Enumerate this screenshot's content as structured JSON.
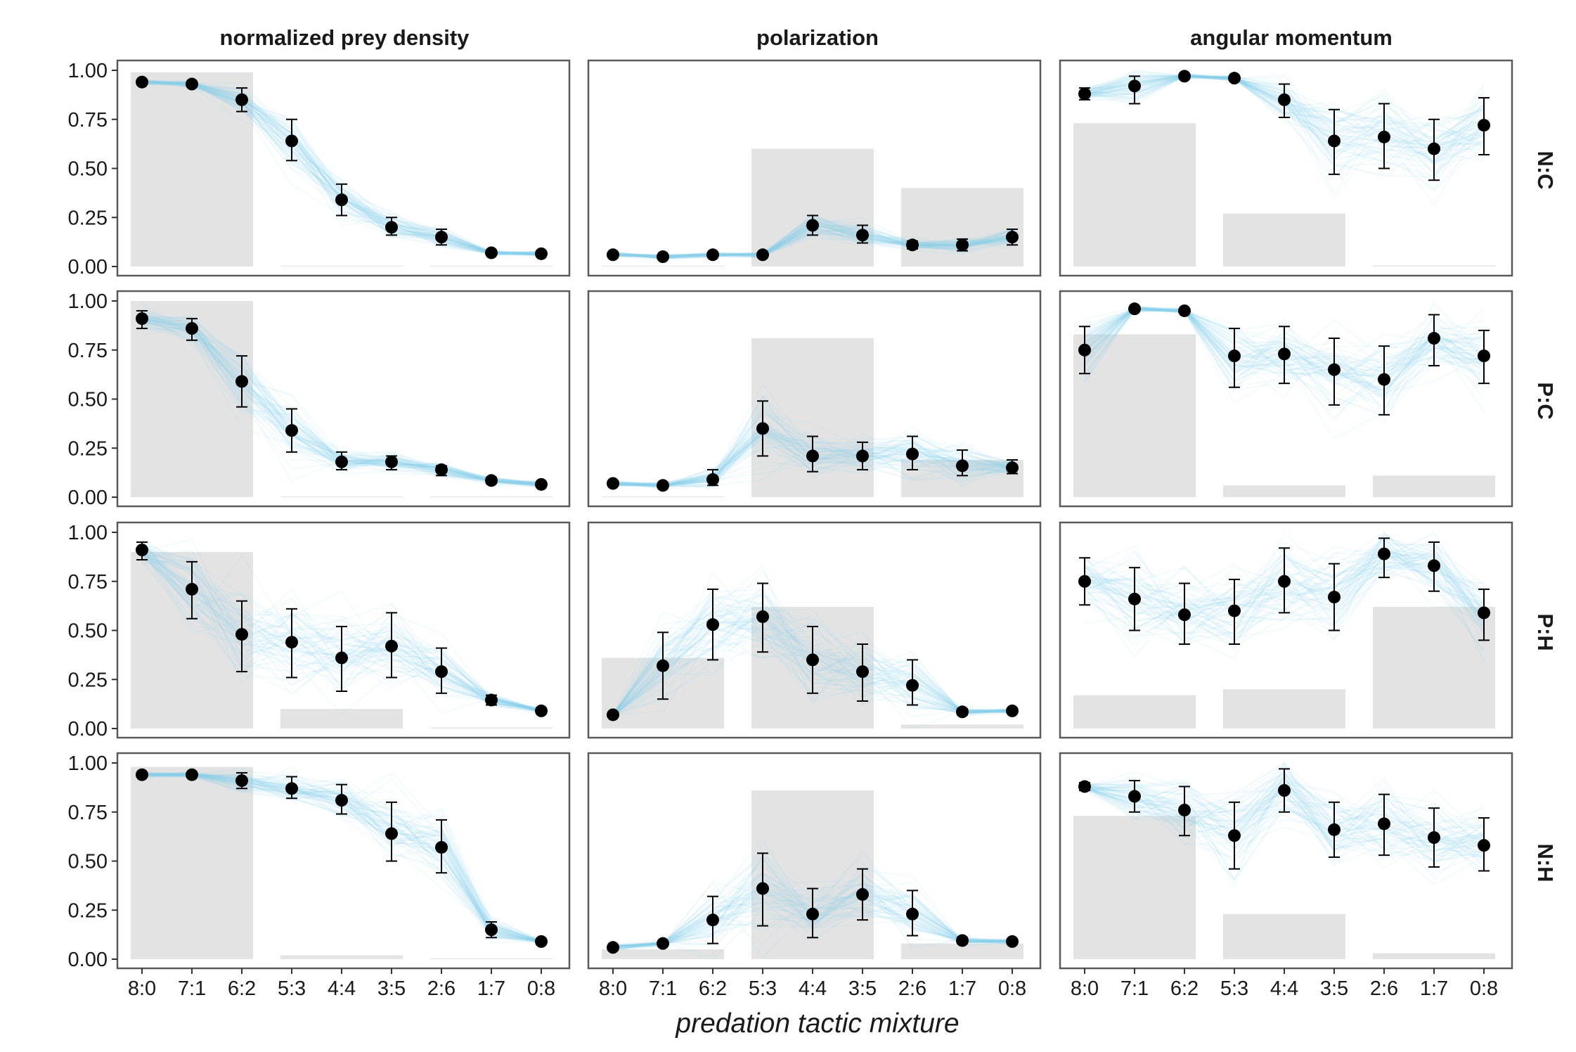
{
  "chart_data": {
    "type": "line",
    "x_title": "predation tactic mixture",
    "x_categories": [
      "8:0",
      "7:1",
      "6:2",
      "5:3",
      "4:4",
      "3:5",
      "2:6",
      "1:7",
      "0:8"
    ],
    "columns": [
      "normalized prey density",
      "polarization",
      "angular momentum"
    ],
    "rows": [
      "N:C",
      "P:C",
      "P:H",
      "N:H"
    ],
    "ylim": [
      0,
      1
    ],
    "y_ticks": [
      "0.00",
      "0.25",
      "0.50",
      "0.75",
      "1.00"
    ],
    "colors": {
      "simulation_lines": "#87ceeb",
      "mean_points": "#000000",
      "background_bars": "#e3e3e3",
      "panel_border": "#5a5a5a"
    },
    "panels": [
      {
        "row": "N:C",
        "column": "normalized prey density",
        "bars": [
          0.99,
          0.0,
          0.0
        ],
        "mean": [
          0.94,
          0.93,
          0.85,
          0.64,
          0.34,
          0.2,
          0.15,
          0.07,
          0.065
        ],
        "lower": [
          0.93,
          0.92,
          0.79,
          0.54,
          0.26,
          0.16,
          0.11,
          0.06,
          0.055
        ],
        "upper": [
          0.95,
          0.94,
          0.91,
          0.75,
          0.42,
          0.25,
          0.19,
          0.08,
          0.075
        ]
      },
      {
        "row": "N:C",
        "column": "polarization",
        "bars": [
          0.0,
          0.6,
          0.4
        ],
        "mean": [
          0.06,
          0.05,
          0.06,
          0.06,
          0.21,
          0.16,
          0.11,
          0.11,
          0.15
        ],
        "lower": [
          0.05,
          0.04,
          0.05,
          0.05,
          0.16,
          0.12,
          0.09,
          0.08,
          0.11
        ],
        "upper": [
          0.07,
          0.06,
          0.07,
          0.07,
          0.26,
          0.21,
          0.13,
          0.14,
          0.19
        ]
      },
      {
        "row": "N:C",
        "column": "angular momentum",
        "bars": [
          0.73,
          0.27,
          0.005
        ],
        "mean": [
          0.88,
          0.92,
          0.97,
          0.96,
          0.85,
          0.64,
          0.66,
          0.6,
          0.72
        ],
        "lower": [
          0.85,
          0.83,
          0.96,
          0.95,
          0.76,
          0.47,
          0.5,
          0.44,
          0.57
        ],
        "upper": [
          0.91,
          0.97,
          0.98,
          0.97,
          0.93,
          0.8,
          0.83,
          0.75,
          0.86
        ]
      },
      {
        "row": "P:C",
        "column": "normalized prey density",
        "bars": [
          1.0,
          0.0,
          0.0
        ],
        "mean": [
          0.91,
          0.86,
          0.59,
          0.34,
          0.18,
          0.18,
          0.14,
          0.085,
          0.065
        ],
        "lower": [
          0.86,
          0.8,
          0.46,
          0.23,
          0.14,
          0.14,
          0.11,
          0.07,
          0.055
        ],
        "upper": [
          0.95,
          0.91,
          0.72,
          0.45,
          0.23,
          0.21,
          0.16,
          0.1,
          0.075
        ]
      },
      {
        "row": "P:C",
        "column": "polarization",
        "bars": [
          0.0,
          0.81,
          0.19
        ],
        "mean": [
          0.07,
          0.06,
          0.09,
          0.35,
          0.21,
          0.21,
          0.22,
          0.16,
          0.15
        ],
        "lower": [
          0.06,
          0.05,
          0.06,
          0.21,
          0.13,
          0.14,
          0.14,
          0.11,
          0.12
        ],
        "upper": [
          0.08,
          0.07,
          0.14,
          0.49,
          0.31,
          0.28,
          0.31,
          0.24,
          0.19
        ]
      },
      {
        "row": "P:C",
        "column": "angular momentum",
        "bars": [
          0.83,
          0.06,
          0.11
        ],
        "mean": [
          0.75,
          0.96,
          0.95,
          0.72,
          0.73,
          0.65,
          0.6,
          0.81,
          0.72
        ],
        "lower": [
          0.63,
          0.95,
          0.94,
          0.56,
          0.58,
          0.47,
          0.42,
          0.67,
          0.58
        ],
        "upper": [
          0.87,
          0.97,
          0.96,
          0.86,
          0.87,
          0.81,
          0.77,
          0.93,
          0.85
        ]
      },
      {
        "row": "P:H",
        "column": "normalized prey density",
        "bars": [
          0.9,
          0.1,
          0.005
        ],
        "mean": [
          0.91,
          0.71,
          0.48,
          0.44,
          0.36,
          0.42,
          0.29,
          0.145,
          0.09
        ],
        "lower": [
          0.86,
          0.56,
          0.29,
          0.26,
          0.19,
          0.26,
          0.18,
          0.12,
          0.08
        ],
        "upper": [
          0.95,
          0.85,
          0.65,
          0.61,
          0.52,
          0.59,
          0.41,
          0.17,
          0.1
        ]
      },
      {
        "row": "P:H",
        "column": "polarization",
        "bars": [
          0.36,
          0.62,
          0.02
        ],
        "mean": [
          0.07,
          0.32,
          0.53,
          0.57,
          0.35,
          0.29,
          0.22,
          0.085,
          0.09
        ],
        "lower": [
          0.06,
          0.15,
          0.35,
          0.39,
          0.18,
          0.14,
          0.12,
          0.07,
          0.08
        ],
        "upper": [
          0.08,
          0.49,
          0.71,
          0.74,
          0.52,
          0.43,
          0.35,
          0.1,
          0.1
        ]
      },
      {
        "row": "P:H",
        "column": "angular momentum",
        "bars": [
          0.17,
          0.2,
          0.62
        ],
        "mean": [
          0.75,
          0.66,
          0.58,
          0.6,
          0.75,
          0.67,
          0.89,
          0.83,
          0.59
        ],
        "lower": [
          0.63,
          0.5,
          0.43,
          0.43,
          0.59,
          0.5,
          0.77,
          0.7,
          0.45
        ],
        "upper": [
          0.87,
          0.82,
          0.74,
          0.76,
          0.92,
          0.84,
          0.97,
          0.95,
          0.71
        ]
      },
      {
        "row": "N:H",
        "column": "normalized prey density",
        "bars": [
          0.98,
          0.02,
          0.0
        ],
        "mean": [
          0.94,
          0.94,
          0.91,
          0.87,
          0.81,
          0.64,
          0.57,
          0.15,
          0.09
        ],
        "lower": [
          0.93,
          0.93,
          0.87,
          0.82,
          0.74,
          0.5,
          0.44,
          0.11,
          0.08
        ],
        "upper": [
          0.95,
          0.95,
          0.95,
          0.93,
          0.89,
          0.8,
          0.71,
          0.19,
          0.1
        ]
      },
      {
        "row": "N:H",
        "column": "polarization",
        "bars": [
          0.05,
          0.86,
          0.08
        ],
        "mean": [
          0.06,
          0.08,
          0.2,
          0.36,
          0.23,
          0.33,
          0.23,
          0.095,
          0.09
        ],
        "lower": [
          0.05,
          0.07,
          0.08,
          0.17,
          0.11,
          0.2,
          0.12,
          0.08,
          0.08
        ],
        "upper": [
          0.07,
          0.09,
          0.32,
          0.54,
          0.36,
          0.46,
          0.35,
          0.11,
          0.1
        ]
      },
      {
        "row": "N:H",
        "column": "angular momentum",
        "bars": [
          0.73,
          0.23,
          0.03
        ],
        "mean": [
          0.88,
          0.83,
          0.76,
          0.63,
          0.86,
          0.66,
          0.69,
          0.62,
          0.58
        ],
        "lower": [
          0.86,
          0.75,
          0.63,
          0.46,
          0.75,
          0.52,
          0.53,
          0.47,
          0.45
        ],
        "upper": [
          0.9,
          0.91,
          0.88,
          0.8,
          0.97,
          0.8,
          0.84,
          0.77,
          0.72
        ]
      }
    ]
  }
}
